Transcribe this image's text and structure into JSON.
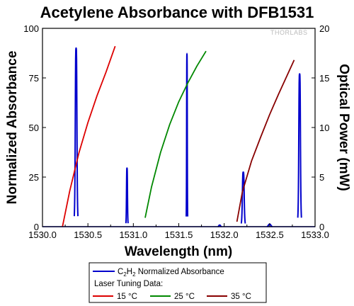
{
  "chart_data": {
    "type": "line",
    "title": "Acetylene Absorbance with DFB1531",
    "xlabel": "Wavelength (nm)",
    "ylabel": "Normalized Absorbance",
    "y2label": "Optical Power (mW)",
    "xlim": [
      1530.0,
      1533.0
    ],
    "ylim": [
      0,
      100
    ],
    "y2lim": [
      0,
      20
    ],
    "x_ticks": [
      "1530.0",
      "1530.5",
      "1531.0",
      "1531.5",
      "1532.0",
      "1532.5",
      "1533.0"
    ],
    "y_ticks": [
      "0",
      "25",
      "50",
      "75",
      "100"
    ],
    "y2_ticks": [
      "0",
      "5",
      "10",
      "15",
      "20"
    ],
    "grid": false,
    "watermark": "THORLABS",
    "legend": {
      "placement": "bottom-center",
      "absorbance_label_prefix": "C",
      "absorbance_label_sub1": "2",
      "absorbance_label_mid": "H",
      "absorbance_label_sub2": "2",
      "absorbance_label_suffix": " Normalized Absorbance",
      "group_title": "Laser Tuning Data:"
    },
    "absorbance": {
      "color": "#0000cc",
      "axis": "left",
      "peaks": [
        {
          "center": 1530.37,
          "height": 90,
          "width": 0.02
        },
        {
          "center": 1530.93,
          "height": 29.5,
          "width": 0.012
        },
        {
          "center": 1531.59,
          "height": 87,
          "width": 0.008
        },
        {
          "center": 1531.95,
          "height": 0.8,
          "width": 0.02
        },
        {
          "center": 1532.21,
          "height": 27.5,
          "width": 0.022
        },
        {
          "center": 1532.5,
          "height": 1.2,
          "width": 0.03
        },
        {
          "center": 1532.83,
          "height": 77,
          "width": 0.02
        }
      ]
    },
    "series": [
      {
        "name": "15 °C",
        "color": "#dd0000",
        "axis": "right",
        "x": [
          1530.22,
          1530.3,
          1530.4,
          1530.5,
          1530.6,
          1530.7,
          1530.8
        ],
        "y": [
          0.0,
          3.6,
          7.4,
          10.5,
          13.2,
          15.6,
          18.2
        ]
      },
      {
        "name": "25 °C",
        "color": "#008800",
        "axis": "right",
        "x": [
          1531.13,
          1531.2,
          1531.3,
          1531.4,
          1531.5,
          1531.6,
          1531.7,
          1531.8
        ],
        "y": [
          0.9,
          4.0,
          7.5,
          10.3,
          12.6,
          14.5,
          16.2,
          17.7
        ]
      },
      {
        "name": "35 °C",
        "color": "#880000",
        "axis": "right",
        "x": [
          1532.14,
          1532.2,
          1532.3,
          1532.4,
          1532.5,
          1532.6,
          1532.7,
          1532.77
        ],
        "y": [
          0.5,
          3.5,
          6.6,
          9.0,
          11.3,
          13.4,
          15.4,
          16.8
        ]
      }
    ]
  }
}
